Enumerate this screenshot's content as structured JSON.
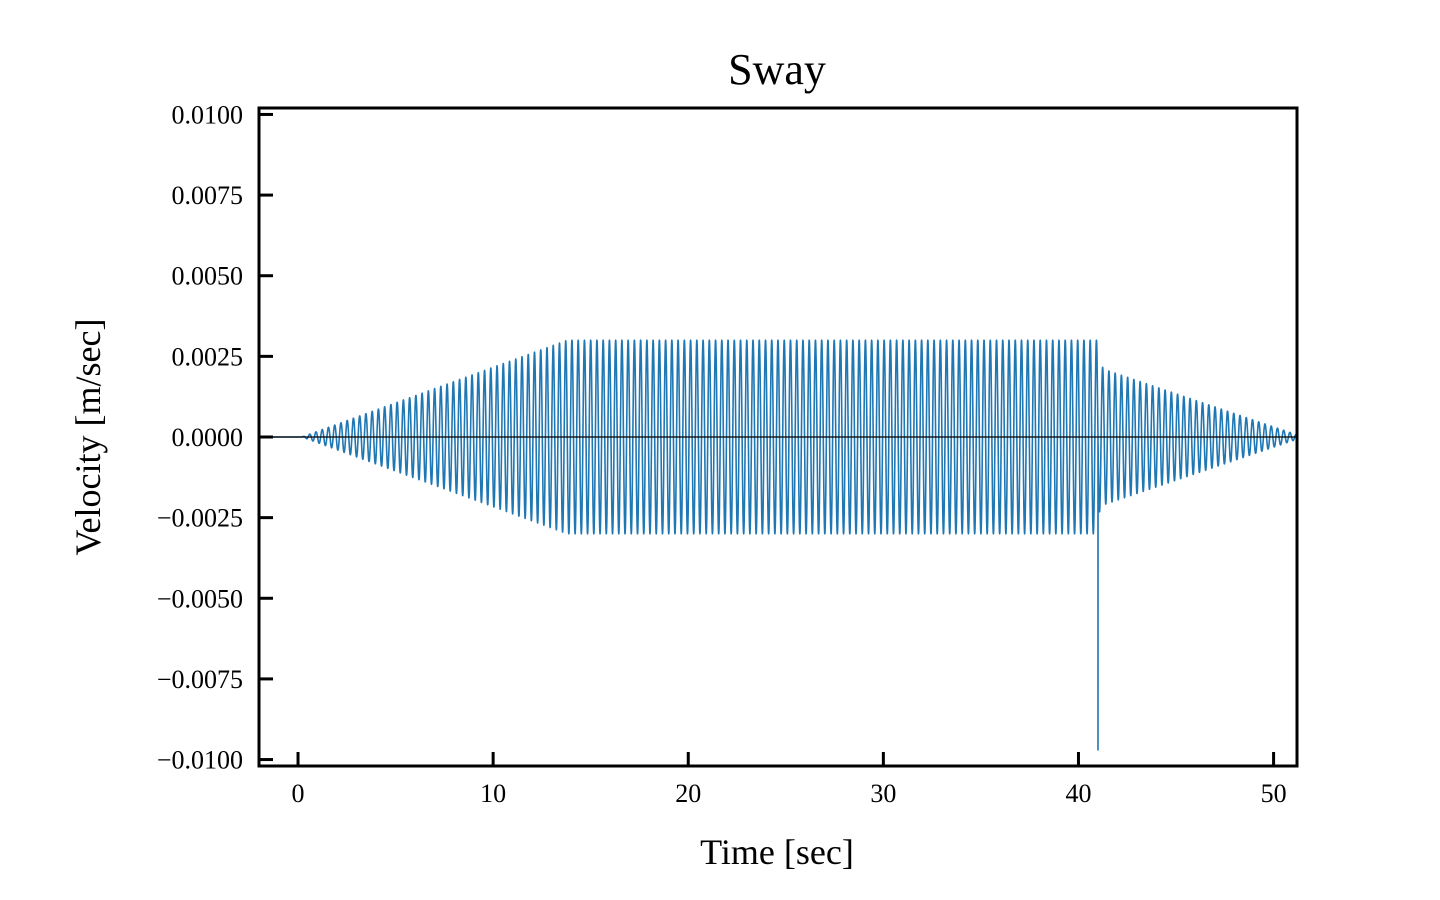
{
  "chart_data": {
    "type": "line",
    "title": "Sway",
    "xlabel": "Time [sec]",
    "ylabel": "Velocity [m/sec]",
    "xlim": [
      -2,
      51.2
    ],
    "ylim": [
      -0.0102,
      0.0102
    ],
    "x_ticks": [
      0,
      10,
      20,
      30,
      40,
      50
    ],
    "x_tick_labels": [
      "0",
      "10",
      "20",
      "30",
      "40",
      "50"
    ],
    "y_ticks": [
      0.01,
      0.0075,
      0.005,
      0.0025,
      0,
      -0.0025,
      -0.005,
      -0.0075,
      -0.01
    ],
    "y_tick_labels": [
      "0.0100",
      "0.0075",
      "0.0050",
      "0.0025",
      "0.0000",
      "−0.0025",
      "−0.0050",
      "−0.0075",
      "−0.0100"
    ],
    "grid": false,
    "zero_line": true,
    "series_color": "#1f77b4",
    "series": [
      {
        "period": 0.32,
        "envelope": {
          "t": [
            -2,
            0.2,
            13.8,
            40.95,
            41.0,
            41.3,
            51.2
          ],
          "amplitude": [
            0,
            0,
            0.003,
            0.003,
            0.0024,
            0.0021,
            7e-05
          ]
        },
        "spike": {
          "x": 41.0,
          "y": -0.0097
        }
      }
    ]
  }
}
